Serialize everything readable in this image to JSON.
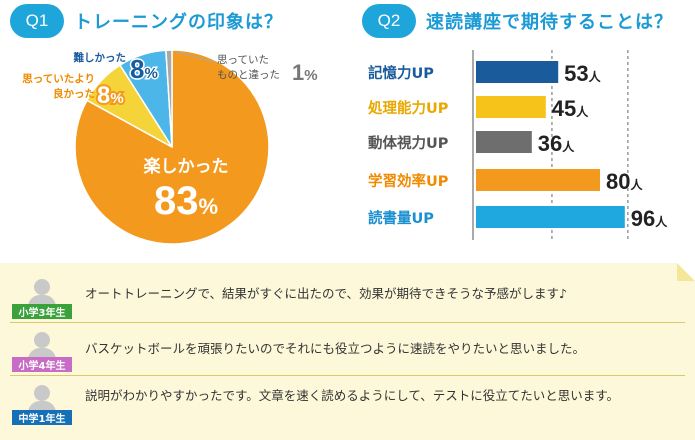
{
  "q1": {
    "badge": "Q1",
    "title": "トレーニングの印象は？"
  },
  "q2": {
    "badge": "Q2",
    "title": "速読講座で期待することは？"
  },
  "colors": {
    "accent": "#1ea6db",
    "pie_orange": "#f39a1e",
    "pie_yellow": "#f5d43a",
    "pie_blue": "#4db6e8",
    "pie_gray": "#a8a8a8",
    "bar_navy": "#1a5b9c",
    "bar_yellow": "#f5c31a",
    "bar_gray": "#6e6e6e",
    "bar_orange": "#f39a1e",
    "bar_blue": "#1fa8df",
    "label_navy": "#1a5b9c",
    "label_yellow": "#e8a800",
    "label_gray": "#555555",
    "label_orange": "#f08a00",
    "label_blue": "#1b8fd0"
  },
  "chart_data": [
    {
      "type": "pie",
      "title": "トレーニングの印象は？",
      "slices": [
        {
          "label": "楽しかった",
          "value": 83,
          "unit": "%",
          "color": "#f39a1e"
        },
        {
          "label": "思っていたより良かった",
          "value": 8,
          "unit": "%",
          "color": "#f5d43a"
        },
        {
          "label": "難しかった",
          "value": 8,
          "unit": "%",
          "color": "#4db6e8"
        },
        {
          "label": "思っていたものと違った",
          "value": 1,
          "unit": "%",
          "color": "#a8a8a8"
        }
      ],
      "display_labels": {
        "fun_line": "楽しかった",
        "better_l1": "思っていたより",
        "better_l2": "良かった",
        "hard": "難しかった",
        "diff_l1": "思っていた",
        "diff_l2": "ものと違った"
      }
    },
    {
      "type": "bar",
      "orientation": "horizontal",
      "title": "速読講座で期待することは？",
      "categories": [
        "記憶力UP",
        "処理能力UP",
        "動体視力UP",
        "学習効率UP",
        "読書量UP"
      ],
      "values": [
        53,
        45,
        36,
        80,
        96
      ],
      "unit": "人",
      "bar_colors": [
        "#1a5b9c",
        "#f5c31a",
        "#6e6e6e",
        "#f39a1e",
        "#1fa8df"
      ],
      "label_colors": [
        "#1a5b9c",
        "#e8a800",
        "#555555",
        "#f08a00",
        "#1b8fd0"
      ],
      "xlim": [
        0,
        100
      ],
      "grid": "dashed-vertical"
    }
  ],
  "comments": [
    {
      "grade": "小学3年生",
      "text": "オートトレーニングで、結果がすぐに出たので、効果が期待できそうな予感がします♪"
    },
    {
      "grade": "小学4年生",
      "text": "バスケットボールを頑張りたいのでそれにも役立つように速読をやりたいと思いました。"
    },
    {
      "grade": "中学1年生",
      "text": "説明がわかりやすかったです。文章を速く読めるようにして、テストに役立てたいと思います。"
    }
  ]
}
